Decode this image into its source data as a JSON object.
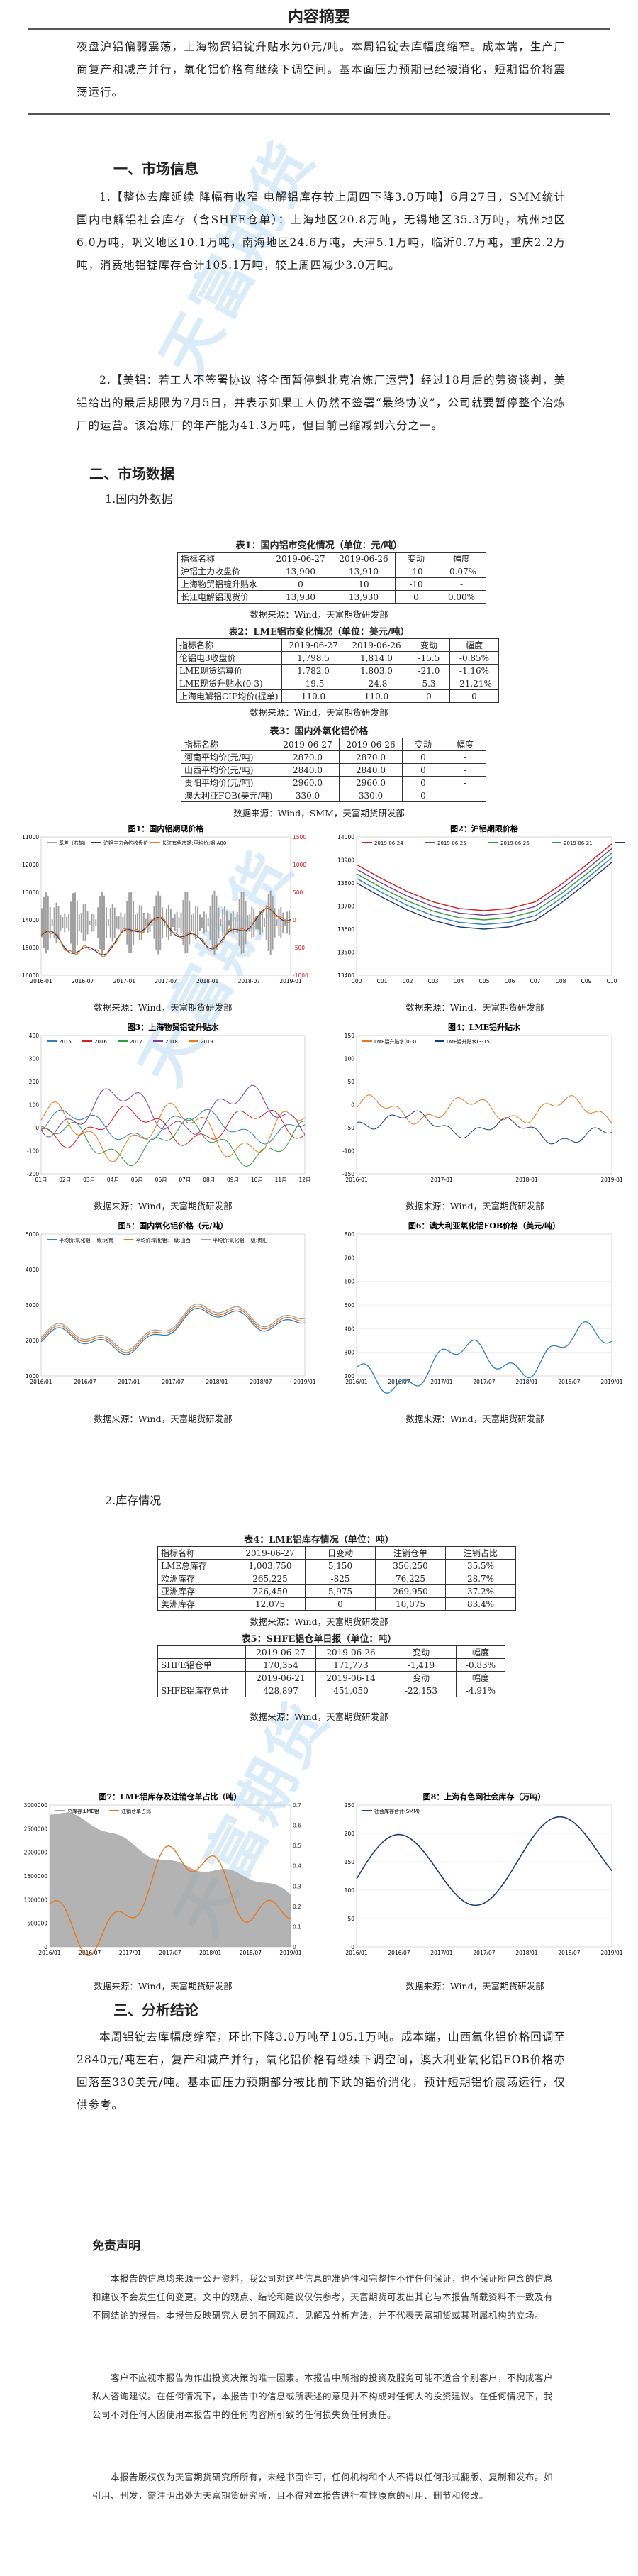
{
  "title": "内容摘要",
  "summary": "夜盘沪铝偏弱震荡，上海物贸铝锭升贴水为0元/吨。本周铝锭去库幅度缩窄。成本端，生产厂商复产和减产并行，氧化铝价格有继续下调空间。基本面压力预期已经被消化，短期铝价将震荡运行。",
  "section1": {
    "heading": "一、市场信息",
    "item1": "1.【整体去库延续 降幅有收窄 电解铝库存较上周四下降3.0万吨】6月27日，SMM统计国内电解铝社会库存（含SHFE仓单）：上海地区20.8万吨，无锡地区35.3万吨，杭州地区6.0万吨，巩义地区10.1万吨，南海地区24.6万吨，天津5.1万吨，临沂0.7万吨，重庆2.2万吨，消费地铝锭库存合计105.1万吨，较上周四减少3.0万吨。",
    "item2": "2.【美铝：若工人不签署协议 将全面暂停魁北克冶炼厂运营】经过18月后的劳资谈判，美铝给出的最后期限为7月5日，并表示如果工人仍然不签署“最终协议”，公司就要暂停整个冶炼厂的运营。该冶炼厂的年产能为41.3万吨，但目前已缩减到六分之一。"
  },
  "section2": {
    "heading": "二、市场数据",
    "sub1": "1.国内外数据",
    "sub2": "2.库存情况"
  },
  "table1": {
    "caption": "表1：国内铝市变化情况（单位：元/吨）",
    "header": [
      "指标名称",
      "2019-06-27",
      "2019-06-26",
      "变动",
      "幅度"
    ],
    "rows": [
      [
        "沪铝主力收盘价",
        "13,900",
        "13,910",
        "-10",
        "-0.07%"
      ],
      [
        "上海物贸铝锭升贴水",
        "0",
        "10",
        "-10",
        "-"
      ],
      [
        "长江电解铝现货价",
        "13,930",
        "13,930",
        "0",
        "0.00%"
      ]
    ],
    "source": "数据来源：Wind，天富期货研发部"
  },
  "table2": {
    "caption": "表2：LME铝市变化情况（单位：美元/吨）",
    "header": [
      "指标名称",
      "2019-06-27",
      "2019-06-26",
      "变动",
      "幅度"
    ],
    "rows": [
      [
        "伦铝电3收盘价",
        "1,798.5",
        "1,814.0",
        "-15.5",
        "-0.85%"
      ],
      [
        "LME现货结算价",
        "1,782.0",
        "1,803.0",
        "-21.0",
        "-1.16%"
      ],
      [
        "LME现货升贴水(0-3)",
        "-19.5",
        "-24.8",
        "5.3",
        "-21.21%"
      ],
      [
        "上海电解铝CIF均价(提单)",
        "110.0",
        "110.0",
        "0",
        "0"
      ]
    ],
    "source": "数据来源：Wind，天富期货研发部"
  },
  "table3": {
    "caption": "表3：国内外氧化铝价格",
    "header": [
      "指标名称",
      "2019-06-27",
      "2019-06-26",
      "变动",
      "幅度"
    ],
    "rows": [
      [
        "河南平均价(元/吨)",
        "2870.0",
        "2870.0",
        "0",
        "-"
      ],
      [
        "山西平均价(元/吨)",
        "2840.0",
        "2840.0",
        "0",
        "-"
      ],
      [
        "贵阳平均价(元/吨)",
        "2960.0",
        "2960.0",
        "0",
        "-"
      ],
      [
        "澳大利亚FOB(美元/吨)",
        "330.0",
        "330.0",
        "0",
        "-"
      ]
    ],
    "source": "数据来源：Wind，SMM，天富期货研发部"
  },
  "figures": {
    "fig1": {
      "title": "图1：国内铝期现价格",
      "legend": [
        "基差（右轴）",
        "沪铝主力合约收盘价",
        "长江有色市场:平均价:铝:A00"
      ],
      "x_ticks": [
        "2016-01",
        "2016-07",
        "2017-01",
        "2017-07",
        "2018-01",
        "2018-07",
        "2019-01"
      ],
      "yl": [
        "11000",
        "12000",
        "13000",
        "14000",
        "15000",
        "16000"
      ],
      "yr": [
        "1500",
        "1000",
        "500",
        "0",
        "-500",
        "-1000"
      ],
      "source": "数据来源：Wind，天富期货研发部"
    },
    "fig2": {
      "title": "图2：沪铝期限价格",
      "legend": [
        "2019-06-24",
        "2019-06-25",
        "2019-06-26",
        "2019-06-21",
        "2019-06-20"
      ],
      "x_ticks": [
        "C00",
        "C01",
        "C02",
        "C03",
        "C04",
        "C05",
        "C06",
        "C07",
        "C08",
        "C09",
        "C10"
      ],
      "y_ticks": [
        "14000",
        "13900",
        "13800",
        "13700",
        "13600",
        "13500",
        "13400"
      ],
      "source": "数据来源：Wind，天富期货研发部"
    },
    "fig3": {
      "title": "图3：上海物贸铝锭升贴水",
      "legend": [
        "2015",
        "2016",
        "2017",
        "2018",
        "2019"
      ],
      "x_ticks": [
        "01月",
        "02月",
        "03月",
        "04月",
        "05月",
        "06月",
        "07月",
        "08月",
        "09月",
        "10月",
        "11月",
        "12月"
      ],
      "y_ticks": [
        "400",
        "300",
        "200",
        "100",
        "0",
        "-100",
        "-200"
      ],
      "source": "数据来源：Wind，天富期货研发部"
    },
    "fig4": {
      "title": "图4：LME铝升贴水",
      "legend": [
        "LME铝升贴水(0-3)",
        "LME铝升贴水(3-15)"
      ],
      "x_ticks": [
        "2016-01",
        "2017-01",
        "2018-01",
        "2019-01"
      ],
      "y_ticks": [
        "150",
        "100",
        "50",
        "0",
        "-50",
        "-100",
        "-150"
      ],
      "source": "数据来源：Wind，天富期货研发部"
    },
    "fig5": {
      "title": "图5：国内氧化铝价格（元/吨）",
      "legend": [
        "平均价:氧化铝:一级:河南",
        "平均价:氧化铝:一级:山西",
        "平均价:氧化铝:一级:贵阳"
      ],
      "x_ticks": [
        "2016/01",
        "2016/07",
        "2017/01",
        "2017/07",
        "2018/01",
        "2018/07",
        "2019/01"
      ],
      "y_ticks": [
        "5000",
        "4000",
        "3000",
        "2000",
        "1000"
      ],
      "source": "数据来源：Wind，天富期货研发部"
    },
    "fig6": {
      "title": "图6：澳大利亚氧化铝FOB价格（美元/吨）",
      "x_ticks": [
        "2016/01",
        "2016/07",
        "2017/01",
        "2017/07",
        "2018/01",
        "2018/07",
        "2019/01"
      ],
      "y_ticks": [
        "800",
        "700",
        "600",
        "500",
        "400",
        "300",
        "200"
      ],
      "source": "数据来源：Wind，天富期货研发部"
    },
    "fig7": {
      "title": "图7：LME铝库存及注销仓单占比（吨）",
      "legend": [
        "总库存:LME铝",
        "注销仓单占比"
      ],
      "x_ticks": [
        "2016/01",
        "2016/07",
        "2017/01",
        "2017/07",
        "2018/01",
        "2018/07",
        "2019/01"
      ],
      "yl": [
        "3000000",
        "2500000",
        "2000000",
        "1500000",
        "1000000",
        "500000",
        "0"
      ],
      "yr": [
        "0.7",
        "0.6",
        "0.5",
        "0.4",
        "0.3",
        "0.2",
        "0.1",
        "0"
      ],
      "source": "数据来源：Wind，天富期货研发部"
    },
    "fig8": {
      "title": "图8：上海有色网社会库存（万吨）",
      "legend": [
        "社会库存合计(SMM)"
      ],
      "x_ticks": [
        "2016/01",
        "2016/07",
        "2017/01",
        "2017/07",
        "2018/01",
        "2018/07",
        "2019/01"
      ],
      "y_ticks": [
        "250",
        "200",
        "150",
        "100",
        "50",
        "0"
      ],
      "source": "数据来源：Wind，天富期货研发部"
    }
  },
  "table4": {
    "caption": "表4：LME铝库存情况（单位：吨）",
    "header": [
      "指标名称",
      "2019-06-27",
      "日变动",
      "注销仓单",
      "注销占比"
    ],
    "rows": [
      [
        "LME总库存",
        "1,003,750",
        "5,150",
        "356,250",
        "35.5%"
      ],
      [
        "欧洲库存",
        "265,225",
        "-825",
        "76,225",
        "28.7%"
      ],
      [
        "亚洲库存",
        "726,450",
        "5,975",
        "269,950",
        "37.2%"
      ],
      [
        "美洲库存",
        "12,075",
        "0",
        "10,075",
        "83.4%"
      ]
    ],
    "source": "数据来源：Wind，天富期货研发部"
  },
  "table5": {
    "caption": "表5：SHFE铝仓单日报（单位：吨）",
    "rows": [
      [
        "",
        "2019-06-27",
        "2019-06-26",
        "变动",
        "幅度"
      ],
      [
        "SHFE铝仓单",
        "170,354",
        "171,773",
        "-1,419",
        "-0.83%"
      ],
      [
        "",
        "2019-06-21",
        "2019-06-14",
        "变动",
        "幅度"
      ],
      [
        "SHFE铝库存总计",
        "428,897",
        "451,050",
        "-22,153",
        "-4.91%"
      ]
    ],
    "source": "数据来源：Wind，天富期货研发部"
  },
  "section3": {
    "heading": "三、分析结论",
    "text": "本周铝锭去库幅度缩窄，环比下降3.0万吨至105.1万吨。成本端，山西氧化铝价格回调至2840元/吨左右，复产和减产并行，氧化铝价格有继续下调空间，澳大利亚氧化铝FOB价格亦回落至330美元/吨。基本面压力预期部分被比前下跌的铝价消化，预计短期铝价震荡运行，仅供参考。"
  },
  "disclaimer": {
    "title": "免责声明",
    "paragraphs": [
      "本报告的信息均来源于公开资料，我公司对这些信息的准确性和完整性不作任何保证，也不保证所包含的信息和建议不会发生任何变更。文中的观点、结论和建议仅供参考，天富期货可发出其它与本报告所载资料不一致及有不同结论的报告。本报告反映研究人员的不同观点、见解及分析方法，并不代表天富期货或其附属机构的立场。",
      "客户不应视本报告为作出投资决策的唯一因素。本报告中所指的投资及服务可能不适合个别客户，不构成客户私人咨询建议。在任何情况下，本报告中的信息或所表述的意见并不构成对任何人的投资建议。在任何情况下，我公司不对任何人因使用本报告中的任何内容所引致的任何损失负任何责任。",
      "本报告版权仅为天富期货研究所所有，未经书面许可，任何机构和个人不得以任何形式翻版、复制和发布。如引用、刊发，需注明出处为天富期货研究所，且不得对本报告进行有悖原意的引用、删节和修改。"
    ]
  },
  "watermark": "天富期货 TIANFU FUTURES",
  "colors": {
    "orange": "#e8771e",
    "blue": "#2f7fc1",
    "gray": "#a0a0a0",
    "red": "#d42020",
    "green": "#2f9d3c",
    "purple": "#7a3fa0",
    "navy": "#1f3a7a"
  }
}
